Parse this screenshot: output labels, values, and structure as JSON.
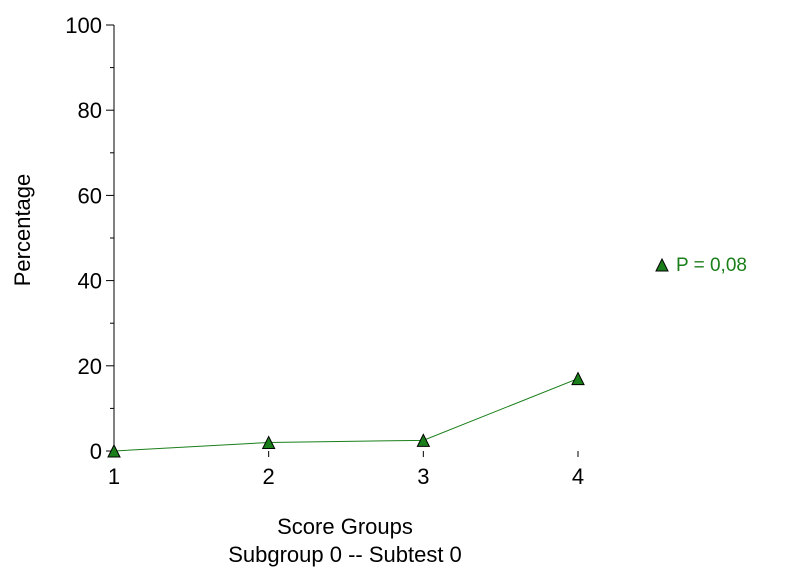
{
  "chart_data": {
    "type": "line",
    "xlabel": "Score Groups",
    "subtitle": "Subgroup 0  --  Subtest 0",
    "ylabel": "Percentage",
    "x": [
      1,
      2,
      3,
      4
    ],
    "xticks": [
      "1",
      "2",
      "3",
      "4"
    ],
    "yticks": [
      "0",
      "20",
      "40",
      "60",
      "80",
      "100"
    ],
    "ylim": [
      0,
      100
    ],
    "xlim": [
      1,
      4
    ],
    "grid": false,
    "legend_position": "right",
    "series": [
      {
        "name": "P = 0,08",
        "marker": "triangle",
        "color": "#1a7f1a",
        "values": [
          0,
          2,
          2.5,
          17
        ]
      }
    ]
  }
}
